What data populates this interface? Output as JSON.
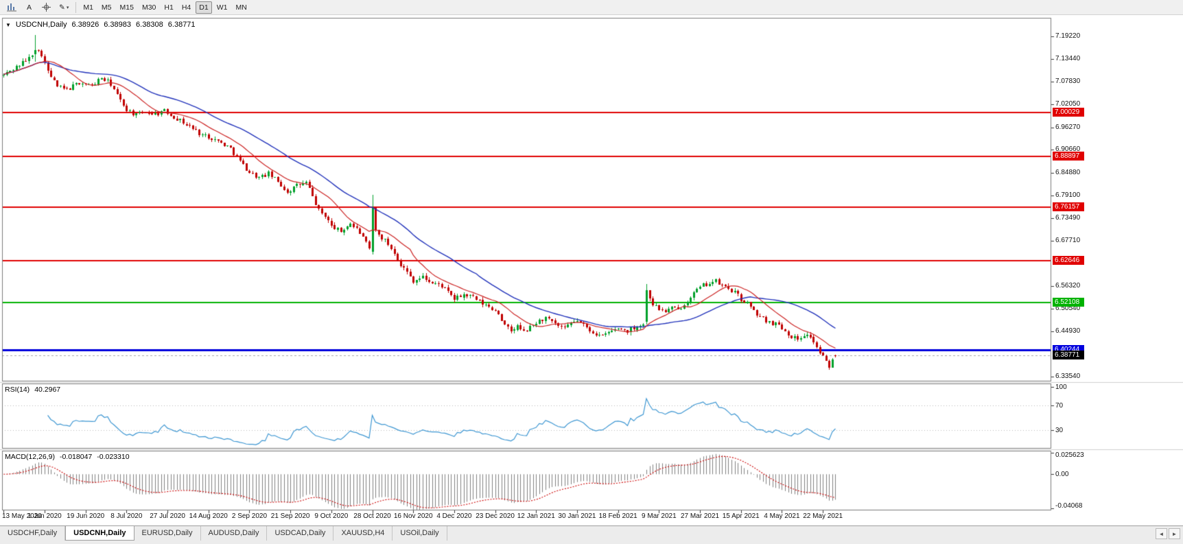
{
  "toolbar": {
    "icons": [
      {
        "name": "chart-type-icon"
      },
      {
        "name": "cursor-icon",
        "glyph": "A"
      },
      {
        "name": "crosshair-icon"
      },
      {
        "name": "draw-tools-icon",
        "glyph": "✎",
        "caret": "▾"
      }
    ],
    "timeframes": [
      "M1",
      "M5",
      "M15",
      "M30",
      "H1",
      "H4",
      "D1",
      "W1",
      "MN"
    ],
    "active_timeframe": "D1"
  },
  "chart": {
    "expander_glyph": "▼",
    "symbol_period": "USDCNH,Daily",
    "open": "6.38926",
    "high": "6.38983",
    "low": "6.38308",
    "close": "6.38771"
  },
  "rsi_panel": {
    "label": "RSI(14)",
    "value": "40.2967",
    "axis_labels": [
      "100",
      "70",
      "30"
    ]
  },
  "macd_panel": {
    "label": "MACD(12,26,9)",
    "value": "-0.018047",
    "signal_value": "-0.023310",
    "axis_labels": [
      "0.025623",
      "0.00",
      "-0.04068"
    ]
  },
  "price_axis": {
    "labels": [
      "7.19220",
      "7.13440",
      "7.07830",
      "7.02050",
      "6.96270",
      "6.90660",
      "6.84880",
      "6.79100",
      "6.73490",
      "6.67710",
      "6.56320",
      "6.50540",
      "6.44930",
      "6.33540"
    ]
  },
  "badges": [
    {
      "label": "7.00029",
      "value": 7.00029,
      "color": "#e00000",
      "type": "resistance-line"
    },
    {
      "label": "6.88897",
      "value": 6.88897,
      "color": "#e00000",
      "type": "resistance-line"
    },
    {
      "label": "6.76157",
      "value": 6.76157,
      "color": "#e00000",
      "type": "resistance-line"
    },
    {
      "label": "6.62646",
      "value": 6.62646,
      "color": "#e00000",
      "type": "resistance-line"
    },
    {
      "label": "6.52108",
      "value": 6.52108,
      "color": "#00b200",
      "type": "support-line"
    },
    {
      "label": "6.40244",
      "value": 6.40244,
      "color": "#0000dd",
      "type": "key-support-line"
    },
    {
      "label": "6.38771",
      "value": 6.38771,
      "color": "#000000",
      "type": "bid-price"
    }
  ],
  "date_axis": {
    "tick_step": 13,
    "labels": [
      "13 May 2020",
      "1 Jun 2020",
      "19 Jun 2020",
      "8 Jul 2020",
      "27 Jul 2020",
      "14 Aug 2020",
      "2 Sep 2020",
      "21 Sep 2020",
      "9 Oct 2020",
      "28 Oct 2020",
      "16 Nov 2020",
      "4 Dec 2020",
      "23 Dec 2020",
      "12 Jan 2021",
      "30 Jan 2021",
      "18 Feb 2021",
      "9 Mar 2021",
      "27 Mar 2021",
      "15 Apr 2021",
      "4 May 2021",
      "22 May 2021"
    ]
  },
  "tabs": {
    "items": [
      "USDCHF,Daily",
      "USDCNH,Daily",
      "EURUSD,Daily",
      "AUDUSD,Daily",
      "USDCAD,Daily",
      "XAUUSD,H4",
      "USOil,Daily"
    ],
    "active": "USDCNH,Daily",
    "scroll_left_glyph": "◄",
    "scroll_right_glyph": "►"
  },
  "chart_data": {
    "type": "candlestick",
    "symbol": "USDCNH",
    "timeframe": "Daily",
    "title": "USDCNH,Daily",
    "ylim": [
      6.3228,
      7.2387
    ],
    "x_slots": 333,
    "candle_count": 265,
    "current_price": 6.38771,
    "last_candle": {
      "open": 6.38926,
      "high": 6.38983,
      "low": 6.38308,
      "close": 6.38771
    },
    "levels": [
      {
        "price": 7.00029,
        "color": "#e00000",
        "width": 2
      },
      {
        "price": 6.88897,
        "color": "#e00000",
        "width": 2
      },
      {
        "price": 6.76157,
        "color": "#e00000",
        "width": 2
      },
      {
        "price": 6.62646,
        "color": "#e00000",
        "width": 2
      },
      {
        "price": 6.52108,
        "color": "#00b200",
        "width": 2
      },
      {
        "price": 6.40244,
        "color": "#0000dd",
        "width": 3
      }
    ],
    "price_path_anchors": [
      [
        0,
        7.095
      ],
      [
        4,
        7.115
      ],
      [
        8,
        7.138
      ],
      [
        10,
        7.158
      ],
      [
        12,
        7.148
      ],
      [
        14,
        7.102
      ],
      [
        17,
        7.066
      ],
      [
        20,
        7.058
      ],
      [
        24,
        7.076
      ],
      [
        28,
        7.068
      ],
      [
        31,
        7.088
      ],
      [
        34,
        7.072
      ],
      [
        37,
        7.03
      ],
      [
        39,
        7.008
      ],
      [
        42,
        6.994
      ],
      [
        45,
        7.002
      ],
      [
        48,
        6.997
      ],
      [
        51,
        7.004
      ],
      [
        54,
        6.99
      ],
      [
        57,
        6.975
      ],
      [
        60,
        6.96
      ],
      [
        63,
        6.944
      ],
      [
        66,
        6.936
      ],
      [
        69,
        6.924
      ],
      [
        72,
        6.91
      ],
      [
        75,
        6.878
      ],
      [
        78,
        6.85
      ],
      [
        81,
        6.836
      ],
      [
        84,
        6.846
      ],
      [
        87,
        6.826
      ],
      [
        90,
        6.8
      ],
      [
        93,
        6.816
      ],
      [
        96,
        6.824
      ],
      [
        98,
        6.788
      ],
      [
        100,
        6.754
      ],
      [
        102,
        6.74
      ],
      [
        104,
        6.714
      ],
      [
        107,
        6.7
      ],
      [
        110,
        6.722
      ],
      [
        113,
        6.698
      ],
      [
        115,
        6.67
      ],
      [
        116,
        6.654
      ],
      [
        117,
        6.714
      ],
      [
        119,
        6.692
      ],
      [
        121,
        6.678
      ],
      [
        124,
        6.648
      ],
      [
        126,
        6.616
      ],
      [
        128,
        6.598
      ],
      [
        130,
        6.576
      ],
      [
        133,
        6.586
      ],
      [
        136,
        6.57
      ],
      [
        139,
        6.564
      ],
      [
        141,
        6.546
      ],
      [
        143,
        6.53
      ],
      [
        146,
        6.542
      ],
      [
        149,
        6.534
      ],
      [
        152,
        6.518
      ],
      [
        155,
        6.506
      ],
      [
        157,
        6.496
      ],
      [
        159,
        6.462
      ],
      [
        161,
        6.45
      ],
      [
        163,
        6.462
      ],
      [
        165,
        6.447
      ],
      [
        167,
        6.458
      ],
      [
        169,
        6.471
      ],
      [
        172,
        6.482
      ],
      [
        175,
        6.466
      ],
      [
        178,
        6.454
      ],
      [
        180,
        6.469
      ],
      [
        182,
        6.477
      ],
      [
        184,
        6.464
      ],
      [
        186,
        6.452
      ],
      [
        188,
        6.443
      ],
      [
        190,
        6.436
      ],
      [
        192,
        6.447
      ],
      [
        195,
        6.457
      ],
      [
        198,
        6.45
      ],
      [
        201,
        6.462
      ],
      [
        203,
        6.468
      ],
      [
        204,
        6.552
      ],
      [
        206,
        6.518
      ],
      [
        208,
        6.505
      ],
      [
        210,
        6.499
      ],
      [
        212,
        6.508
      ],
      [
        214,
        6.502
      ],
      [
        216,
        6.519
      ],
      [
        218,
        6.538
      ],
      [
        220,
        6.553
      ],
      [
        222,
        6.565
      ],
      [
        224,
        6.571
      ],
      [
        226,
        6.575
      ],
      [
        228,
        6.564
      ],
      [
        230,
        6.556
      ],
      [
        232,
        6.546
      ],
      [
        234,
        6.53
      ],
      [
        236,
        6.52
      ],
      [
        238,
        6.498
      ],
      [
        240,
        6.486
      ],
      [
        242,
        6.476
      ],
      [
        244,
        6.47
      ],
      [
        246,
        6.466
      ],
      [
        248,
        6.45
      ],
      [
        250,
        6.436
      ],
      [
        252,
        6.43
      ],
      [
        254,
        6.441
      ],
      [
        256,
        6.437
      ],
      [
        258,
        6.408
      ],
      [
        260,
        6.384
      ],
      [
        261,
        6.371
      ],
      [
        262,
        6.361
      ],
      [
        263,
        6.376
      ],
      [
        264,
        6.3877
      ]
    ],
    "special_candles": {
      "10": [
        7.148,
        7.196,
        7.128,
        7.158
      ],
      "117": [
        6.65,
        6.792,
        6.642,
        6.76
      ],
      "204": [
        6.472,
        6.568,
        6.466,
        6.552
      ],
      "264": [
        6.38926,
        6.38983,
        6.38308,
        6.38771
      ]
    },
    "noise_seed": 42,
    "ma_fast": {
      "period": 13,
      "color": "#cc2222"
    },
    "ma_slow": {
      "period": 34,
      "color": "#2233bb"
    },
    "indicators": {
      "rsi": {
        "period": 14,
        "current": 40.2967,
        "guides": [
          70,
          30
        ],
        "ylim": [
          0,
          100
        ]
      },
      "macd": {
        "fast": 12,
        "slow": 26,
        "signal": 9,
        "current": -0.018047,
        "signal_current": -0.02331,
        "scale": [
          -0.04068,
          0.025623
        ]
      }
    },
    "colors": {
      "up": "#00a02a",
      "down": "#c00000",
      "rsi_line": "#3c96d2",
      "macd_hist": "#7f7f7f",
      "macd_signal": "#cc0000",
      "bid_line": "#a8a8a8",
      "frame": "#7a7a7a"
    }
  }
}
